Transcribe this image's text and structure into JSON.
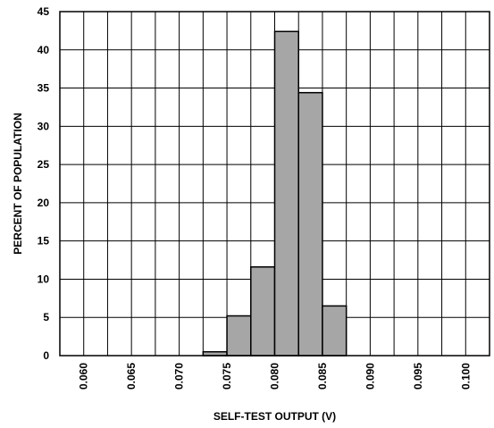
{
  "chart_data": {
    "type": "bar",
    "title": "",
    "xlabel": "SELF-TEST OUTPUT (V)",
    "ylabel": "PERCENT OF POPULATION",
    "xlim": [
      0.0575,
      0.1025
    ],
    "ylim": [
      0,
      45
    ],
    "xticks": [
      "0.060",
      "0.065",
      "0.070",
      "0.075",
      "0.080",
      "0.085",
      "0.090",
      "0.095",
      "0.100"
    ],
    "yticks": [
      "0",
      "5",
      "10",
      "15",
      "20",
      "25",
      "30",
      "35",
      "40",
      "45"
    ],
    "grid": true,
    "bin_width": 0.0025,
    "bins": [
      {
        "x_start": 0.0725,
        "x_end": 0.075,
        "value": 0.5
      },
      {
        "x_start": 0.075,
        "x_end": 0.0775,
        "value": 5.2
      },
      {
        "x_start": 0.0775,
        "x_end": 0.08,
        "value": 11.6
      },
      {
        "x_start": 0.08,
        "x_end": 0.0825,
        "value": 42.4
      },
      {
        "x_start": 0.0825,
        "x_end": 0.085,
        "value": 34.4
      },
      {
        "x_start": 0.085,
        "x_end": 0.0875,
        "value": 6.5
      }
    ],
    "bar_color": "#a6a6a6",
    "grid_color": "#000000"
  }
}
